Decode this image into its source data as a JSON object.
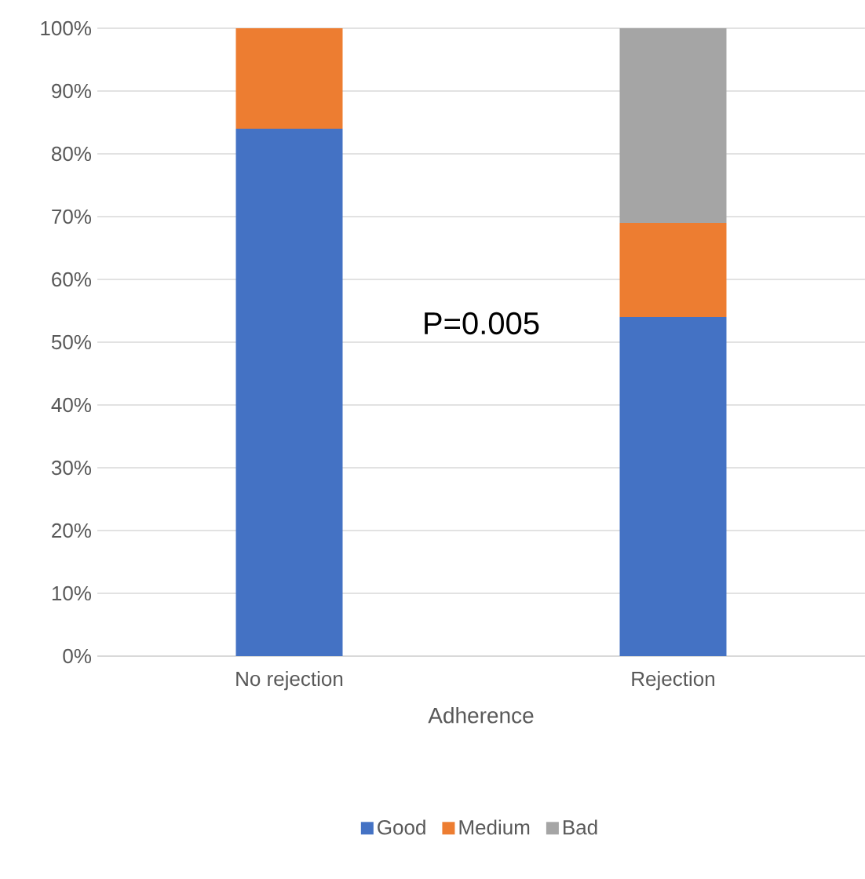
{
  "chart_data": {
    "type": "bar",
    "stacked": true,
    "xlabel": "Adherence",
    "categories": [
      "No rejection",
      "Rejection"
    ],
    "series": [
      {
        "name": "Good",
        "color": "#4472c4",
        "values": [
          84,
          54
        ]
      },
      {
        "name": "Medium",
        "color": "#ed7d31",
        "values": [
          16,
          15
        ]
      },
      {
        "name": "Bad",
        "color": "#a5a5a5",
        "values": [
          0,
          31
        ]
      }
    ],
    "ylim": [
      0,
      100
    ],
    "yticks": [
      {
        "value": 0,
        "label": "0%"
      },
      {
        "value": 10,
        "label": "10%"
      },
      {
        "value": 20,
        "label": "20%"
      },
      {
        "value": 30,
        "label": "30%"
      },
      {
        "value": 40,
        "label": "40%"
      },
      {
        "value": 50,
        "label": "50%"
      },
      {
        "value": 60,
        "label": "60%"
      },
      {
        "value": 70,
        "label": "70%"
      },
      {
        "value": 80,
        "label": "80%"
      },
      {
        "value": 90,
        "label": "90%"
      },
      {
        "value": 100,
        "label": "100%"
      }
    ],
    "grid": "y",
    "legend": "bottom",
    "annotations": [
      "P=0.005"
    ]
  }
}
